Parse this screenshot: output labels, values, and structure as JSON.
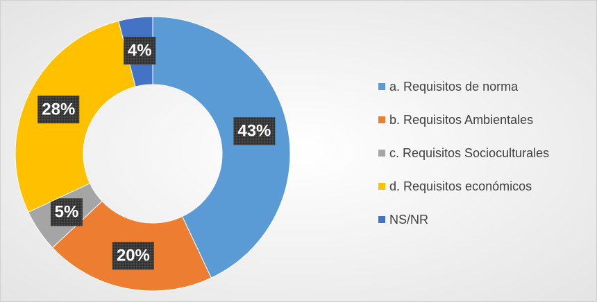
{
  "chart_data": {
    "type": "donut",
    "categories": [
      "a. Requisitos de norma",
      "b. Requisitos Ambientales",
      "c. Requisitos Socioculturales",
      "d. Requisitos económicos",
      "NS/NR"
    ],
    "values": [
      43,
      20,
      5,
      28,
      4
    ],
    "value_labels": [
      "43%",
      "20%",
      "5%",
      "28%",
      "4%"
    ],
    "colors": [
      "#5b9bd5",
      "#ed7d31",
      "#a5a5a5",
      "#ffc000",
      "#4472c4"
    ],
    "legend": "right"
  }
}
